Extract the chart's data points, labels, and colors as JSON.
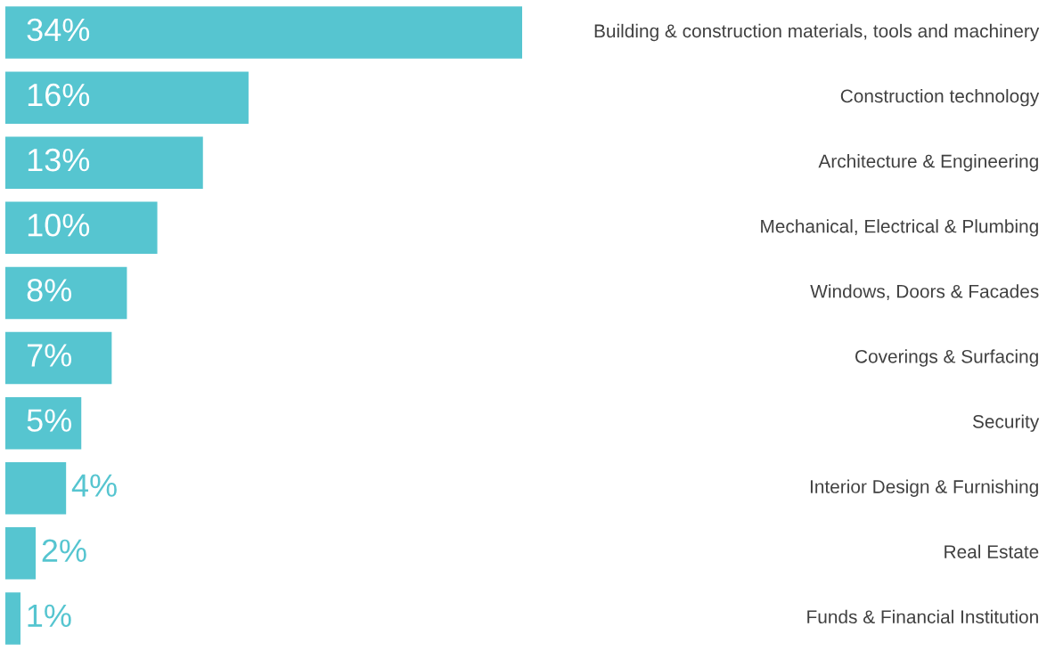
{
  "chart_data": {
    "type": "bar",
    "orientation": "horizontal",
    "categories": [
      "Building & construction materials, tools and machinery",
      "Construction technology",
      "Architecture & Engineering",
      "Mechanical, Electrical & Plumbing",
      "Windows, Doors & Facades",
      "Coverings & Surfacing",
      "Security",
      "Interior Design & Furnishing",
      "Real Estate",
      "Funds & Financial Institution"
    ],
    "values": [
      34,
      16,
      13,
      10,
      8,
      7,
      5,
      4,
      2,
      1
    ],
    "value_labels": [
      "34%",
      "16%",
      "13%",
      "10%",
      "8%",
      "7%",
      "5%",
      "4%",
      "2%",
      "1%"
    ],
    "color": "#56c5d0"
  }
}
